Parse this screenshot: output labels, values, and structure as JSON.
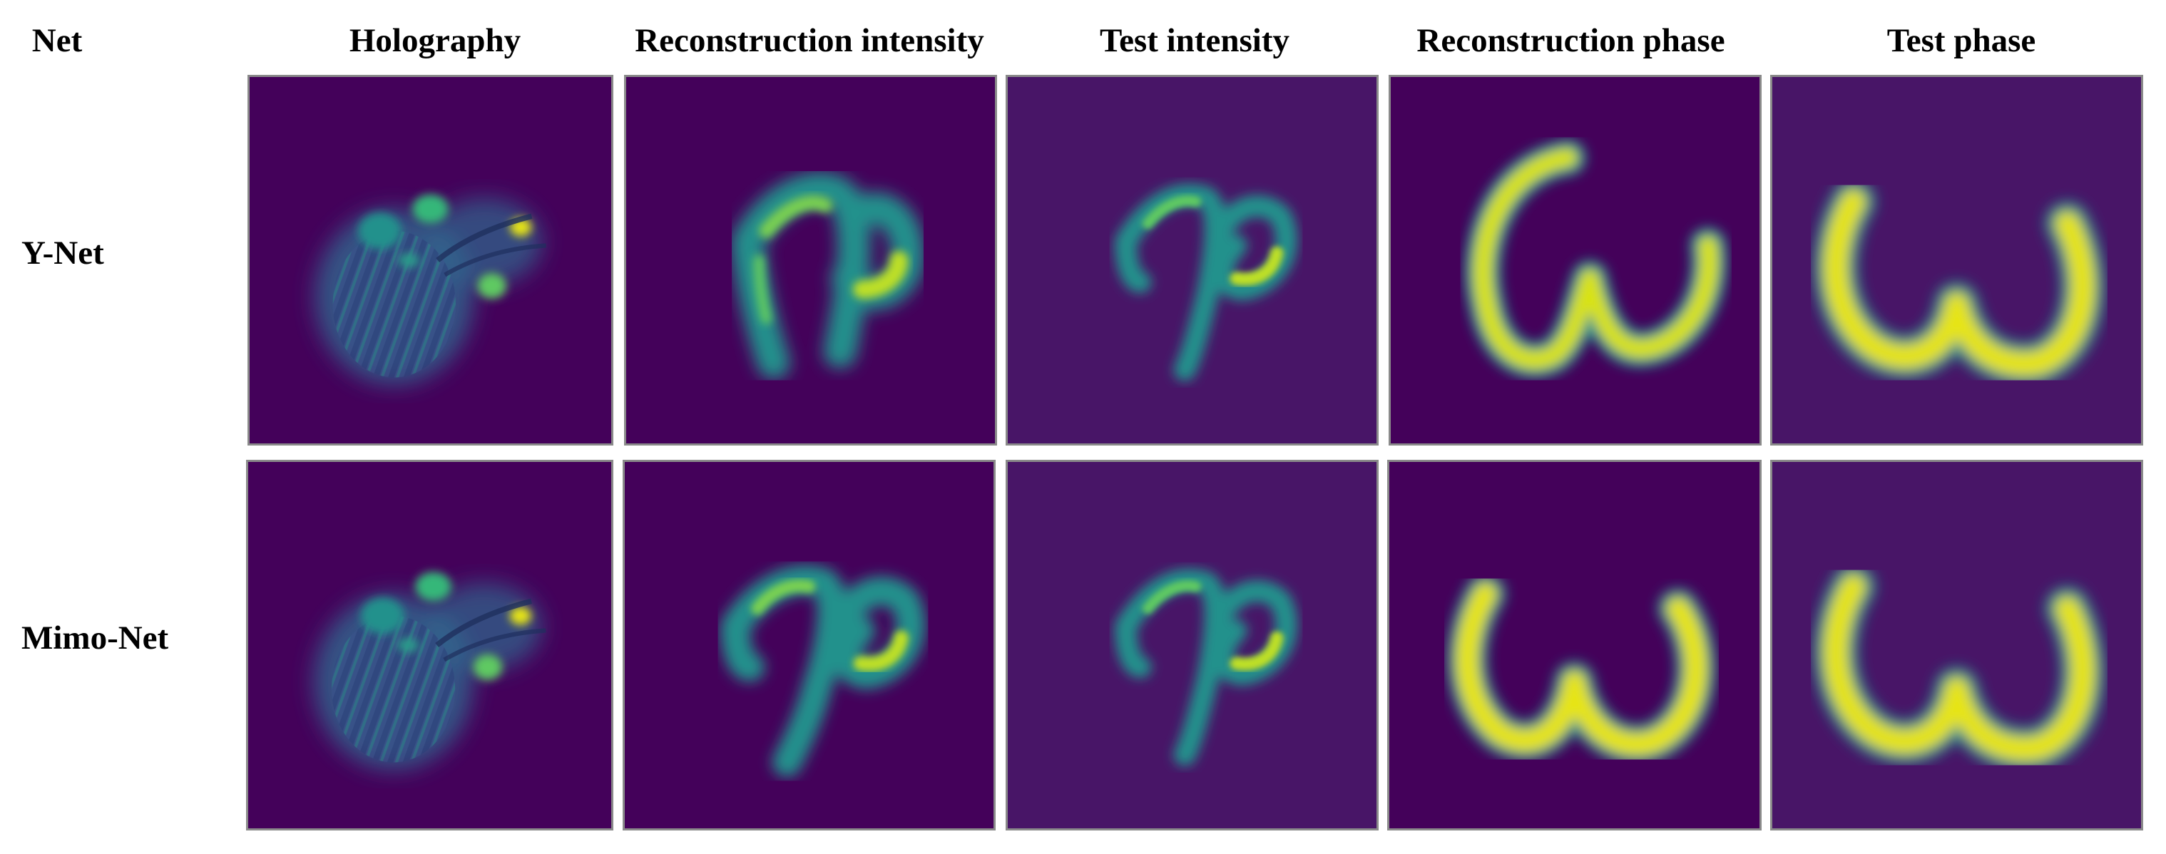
{
  "header": {
    "net": "Net",
    "columns": [
      "Holography",
      "Reconstruction intensity",
      "Test intensity",
      "Reconstruction phase",
      "Test phase"
    ]
  },
  "rows": [
    {
      "label": "Y-Net"
    },
    {
      "label": "Mimo-Net"
    }
  ],
  "colors": {
    "background_dark": "#44015a",
    "background_test": "#481567",
    "mid_teal": "#23898e",
    "bright_green": "#35b779",
    "yellow": "#e6e419",
    "frame": "#8a8a8a"
  }
}
